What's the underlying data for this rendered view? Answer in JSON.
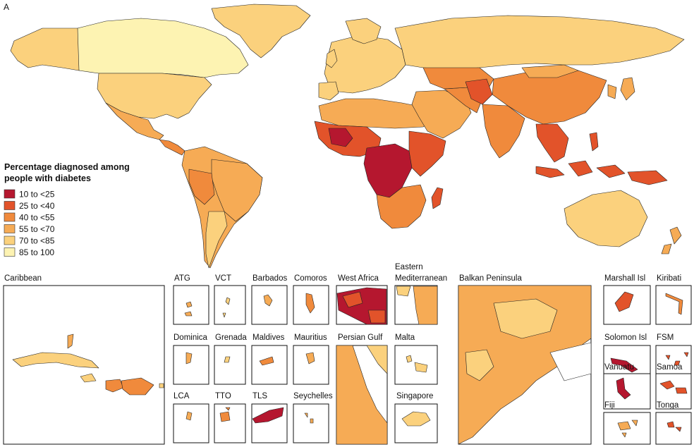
{
  "panel_letter": "A",
  "legend": {
    "title_line1": "Percentage diagnosed among",
    "title_line2": "people with diabetes",
    "items": [
      {
        "label": "10 to <25",
        "color": "#b5172f"
      },
      {
        "label": "25 to <40",
        "color": "#e2532a"
      },
      {
        "label": "40 to <55",
        "color": "#f08a3c"
      },
      {
        "label": "55 to <70",
        "color": "#f6ab55"
      },
      {
        "label": "70 to <85",
        "color": "#fbd17d"
      },
      {
        "label": "85 to 100",
        "color": "#fdf3b2"
      }
    ]
  },
  "insets": {
    "caribbean": "Caribbean",
    "atg": "ATG",
    "vct": "VCT",
    "barbados": "Barbados",
    "comoros": "Comoros",
    "west_africa": "West Africa",
    "eastern_med_1": "Eastern",
    "eastern_med_2": "Mediterranean",
    "balkan": "Balkan Peninsula",
    "marshall": "Marshall Isl",
    "kiribati": "Kiribati",
    "dominica": "Dominica",
    "grenada": "Grenada",
    "maldives": "Maldives",
    "mauritius": "Mauritius",
    "persian_gulf": "Persian Gulf",
    "malta": "Malta",
    "solomon": "Solomon Isl",
    "fsm": "FSM",
    "lca": "LCA",
    "tto": "TTO",
    "tls": "TLS",
    "seychelles": "Seychelles",
    "singapore": "Singapore",
    "vanuatu": "Vanuatu",
    "samoa": "Samoa",
    "fiji": "Fiji",
    "tonga": "Tonga"
  }
}
